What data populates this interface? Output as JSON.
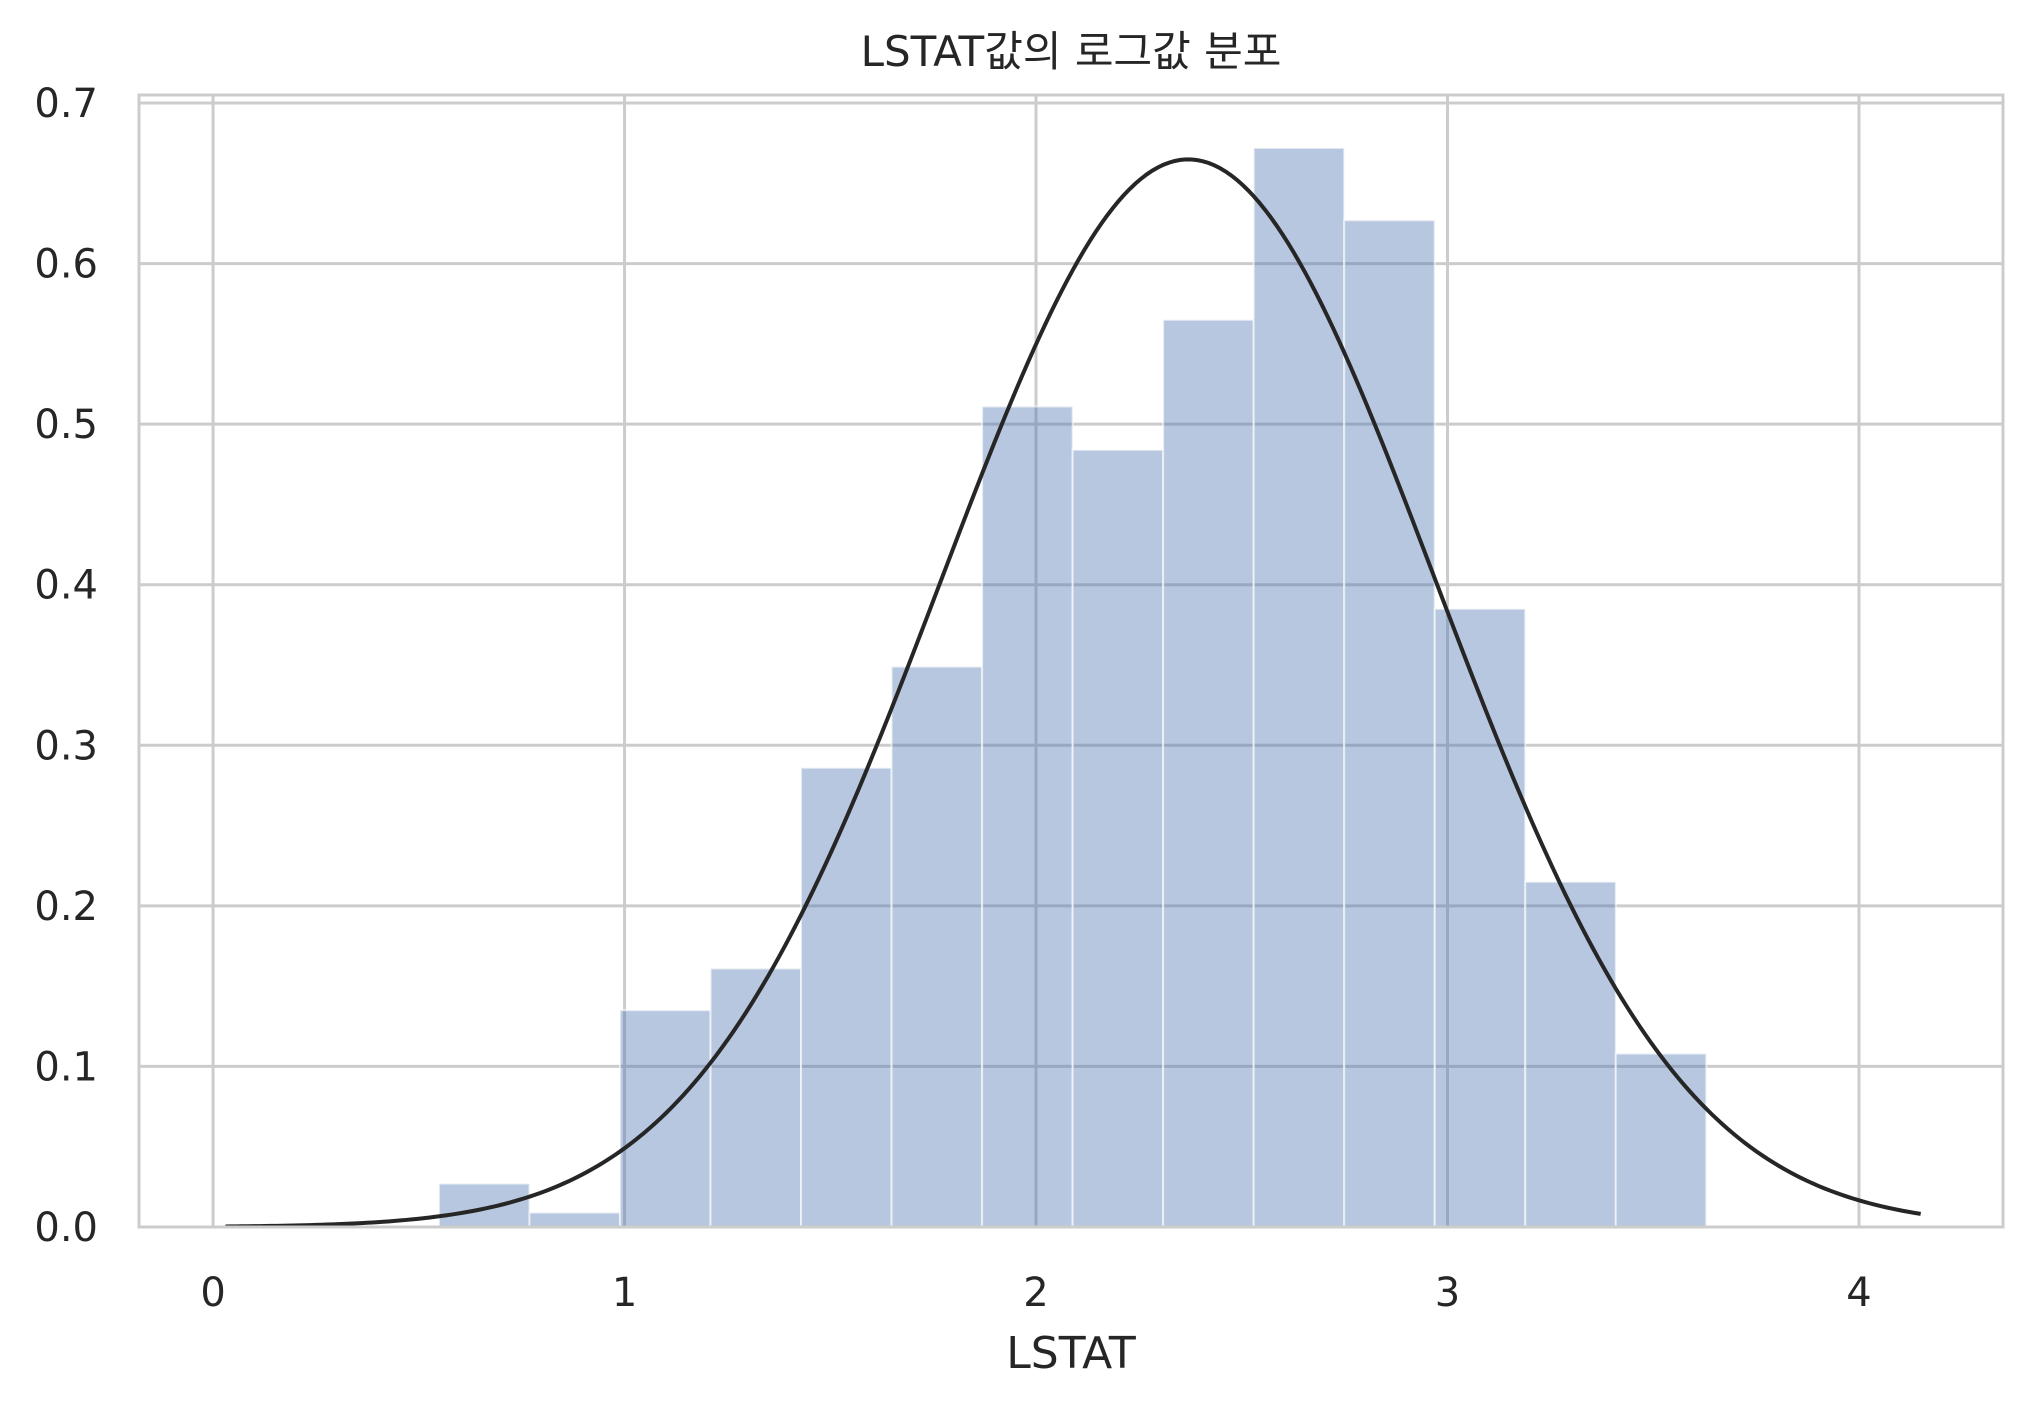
{
  "chart_data": {
    "type": "bar",
    "title": "LSTAT값의 로그값 분포",
    "xlabel": "LSTAT",
    "ylabel": "",
    "xlim": [
      -0.18,
      4.35
    ],
    "ylim": [
      0.0,
      0.705
    ],
    "xticks": [
      "0",
      "1",
      "2",
      "3",
      "4"
    ],
    "yticks": [
      "0.0",
      "0.1",
      "0.2",
      "0.3",
      "0.4",
      "0.5",
      "0.6",
      "0.7"
    ],
    "grid": true,
    "histogram": {
      "bin_edges": [
        0.549,
        0.769,
        0.989,
        1.209,
        1.429,
        1.649,
        1.869,
        2.089,
        2.309,
        2.529,
        2.749,
        2.969,
        3.189,
        3.409,
        3.629
      ],
      "density": [
        0.027,
        0.009,
        0.135,
        0.161,
        0.286,
        0.349,
        0.511,
        0.484,
        0.565,
        0.672,
        0.627,
        0.385,
        0.215,
        0.108
      ],
      "color": "#4c72b0"
    },
    "fit_curve": {
      "kind": "normal",
      "mean": 2.37,
      "std": 0.6,
      "x_range": [
        0.03,
        4.15
      ],
      "color": "#262626"
    }
  }
}
